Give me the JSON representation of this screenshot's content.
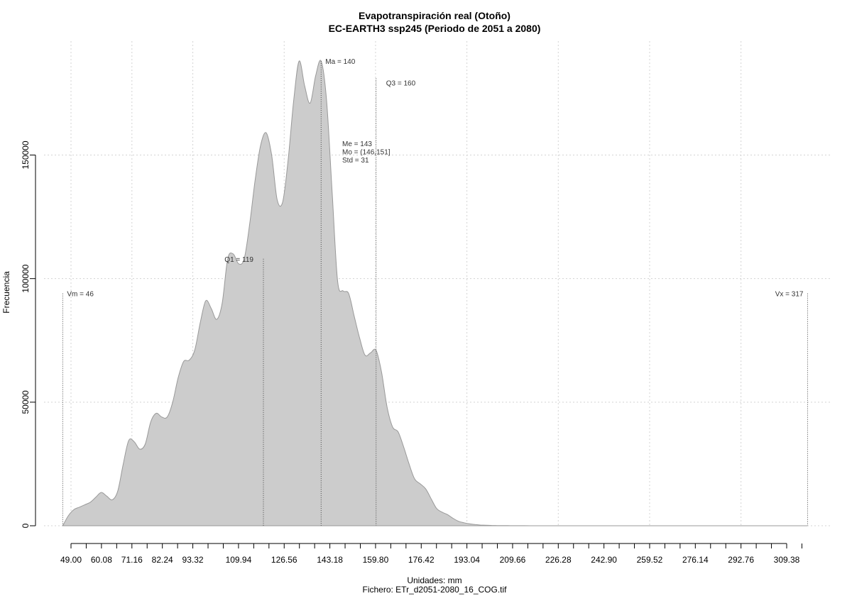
{
  "chart_data": {
    "type": "area",
    "title": "Evapotranspiración real (Otoño)",
    "subtitle": "EC-EARTH3 ssp245 (Periodo de 2051 a 2080)",
    "xlabel": "Unidades: mm",
    "ylabel": "Frecuencia",
    "caption": "Fichero: ETr_d2051-2080_16_COG.tif",
    "fill_color": "#cccccc",
    "line_color": "#999999",
    "grid": true,
    "xlim": [
      45,
      320
    ],
    "ylim": [
      0,
      190000
    ],
    "x_ticks": [
      49.0,
      60.08,
      71.16,
      82.24,
      93.32,
      109.94,
      126.56,
      143.18,
      159.8,
      176.42,
      193.04,
      209.66,
      226.28,
      242.9,
      259.52,
      276.14,
      292.76,
      309.38
    ],
    "x_tick_labels": [
      "49.00",
      "60.08",
      "71.16",
      "82.24",
      "93.32",
      "109.94",
      "126.56",
      "143.18",
      "159.80",
      "176.42",
      "193.04",
      "209.66",
      "226.28",
      "242.90",
      "259.52",
      "276.14",
      "292.76",
      "309.38"
    ],
    "y_ticks": [
      0,
      50000,
      100000,
      150000
    ],
    "y_tick_labels": [
      "0",
      "50000",
      "100000",
      "150000"
    ],
    "x_minor_ticks": [
      54.54,
      65.62,
      76.7,
      87.78,
      98.86,
      104.4,
      115.48,
      121.02,
      132.1,
      137.64,
      148.72,
      154.26,
      165.34,
      170.88,
      181.96,
      187.5,
      198.58,
      204.12,
      215.2,
      220.74,
      231.82,
      237.36,
      248.44,
      253.98,
      265.06,
      270.6,
      281.68,
      287.22,
      298.3,
      303.84,
      314.92
    ],
    "x": [
      46,
      48,
      50,
      52,
      54,
      56,
      58,
      60,
      62,
      64,
      66,
      68,
      70,
      72,
      74,
      76,
      78,
      80,
      82,
      84,
      86,
      88,
      90,
      92,
      94,
      96,
      98,
      100,
      102,
      104,
      106,
      108,
      110,
      112,
      114,
      116,
      118,
      120,
      122,
      124,
      126,
      128,
      130,
      132,
      134,
      136,
      138,
      140,
      142,
      144,
      146,
      148,
      150,
      152,
      154,
      156,
      158,
      160,
      162,
      164,
      166,
      168,
      170,
      172,
      174,
      176,
      178,
      180,
      182,
      184,
      186,
      188,
      190,
      192,
      194,
      196,
      198,
      200,
      202,
      204,
      206,
      208,
      210,
      214,
      218,
      222,
      226,
      230,
      236,
      242,
      250,
      260,
      280,
      300,
      317
    ],
    "y": [
      0,
      4000,
      6500,
      7500,
      8500,
      9500,
      11500,
      13500,
      12000,
      10500,
      14000,
      25000,
      34500,
      34000,
      31000,
      33000,
      42000,
      45500,
      44000,
      44000,
      50000,
      60000,
      66500,
      67000,
      71000,
      82000,
      91000,
      88000,
      83500,
      90000,
      108000,
      110000,
      106000,
      108000,
      122000,
      140000,
      154000,
      159000,
      150000,
      132000,
      131000,
      148000,
      172000,
      188000,
      178000,
      171000,
      182000,
      188000,
      172000,
      135000,
      99000,
      95000,
      94000,
      85000,
      76000,
      69000,
      70000,
      71000,
      62000,
      48000,
      40000,
      38000,
      32000,
      25000,
      19000,
      17000,
      15000,
      11000,
      7000,
      5500,
      4500,
      3000,
      1800,
      1200,
      800,
      500,
      300,
      200,
      150,
      100,
      80,
      50,
      30,
      20,
      10,
      5,
      0,
      0,
      0,
      0,
      0,
      0,
      0,
      0,
      0
    ],
    "markers": [
      {
        "key": "vm",
        "x": 46,
        "label": "Vm = 46",
        "y_top": 94000
      },
      {
        "key": "q1",
        "x": 119,
        "label": "Q1 = 119",
        "y_top": 108000
      },
      {
        "key": "ma",
        "x": 140,
        "label": "Ma = 140",
        "y_top": 188000
      },
      {
        "key": "q3",
        "x": 160,
        "label": "Q3 = 160",
        "y_top": 181000
      },
      {
        "key": "vx",
        "x": 317,
        "label": "Vx = 317",
        "y_top": 94000
      }
    ],
    "stats": [
      "Me = 143",
      "Mo = (146,151]",
      "Std = 31"
    ]
  }
}
